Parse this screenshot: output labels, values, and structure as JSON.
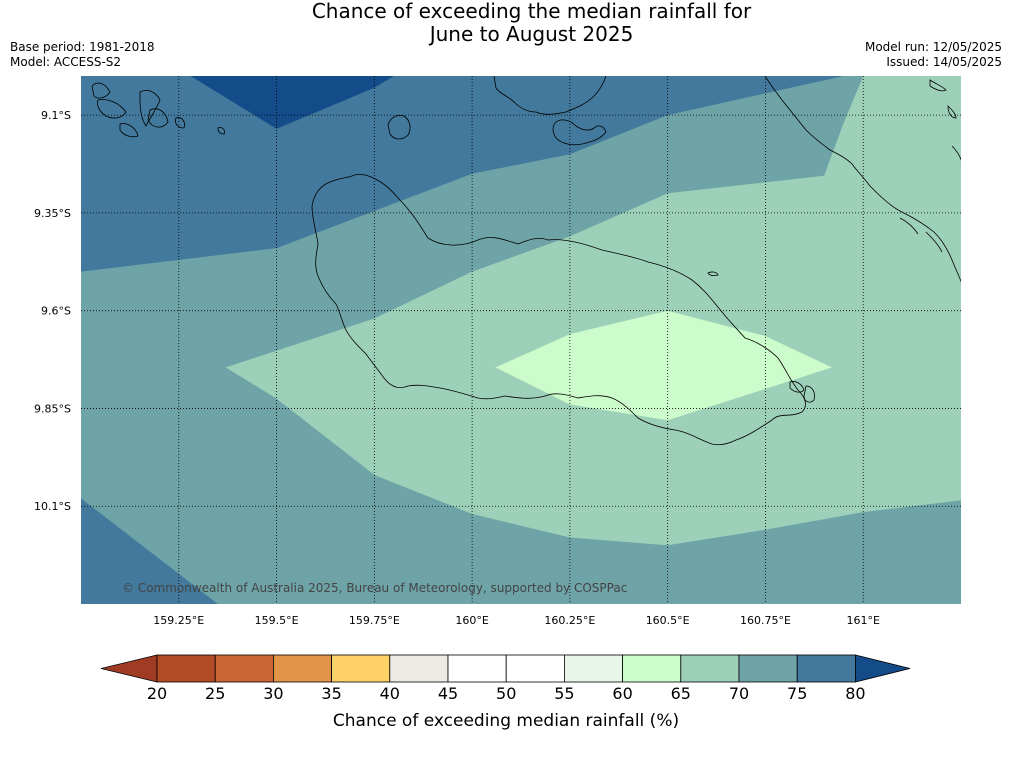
{
  "title": {
    "line1": "Chance of exceeding the median rainfall for",
    "line2": "June to August 2025"
  },
  "meta": {
    "base_period": "Base period: 1981-2018",
    "model": "Model: ACCESS-S2",
    "model_run": "Model run: 12/05/2025",
    "issued": "Issued: 14/05/2025"
  },
  "copyright": "© Commonwealth of Australia 2025, Bureau of Meteorology, supported by COSPPac",
  "map": {
    "lon_range": [
      159.0,
      161.25
    ],
    "lat_range": [
      -10.35,
      -9.0
    ],
    "lon_ticks": [
      {
        "value": 159.25,
        "label": "159.25°E"
      },
      {
        "value": 159.5,
        "label": "159.5°E"
      },
      {
        "value": 159.75,
        "label": "159.75°E"
      },
      {
        "value": 160.0,
        "label": "160°E"
      },
      {
        "value": 160.25,
        "label": "160.25°E"
      },
      {
        "value": 160.5,
        "label": "160.5°E"
      },
      {
        "value": 160.75,
        "label": "160.75°E"
      },
      {
        "value": 161.0,
        "label": "161°E"
      }
    ],
    "lat_ticks": [
      {
        "value": -9.1,
        "label": "9.1°S"
      },
      {
        "value": -9.35,
        "label": "9.35°S"
      },
      {
        "value": -9.6,
        "label": "9.6°S"
      },
      {
        "value": -9.85,
        "label": "9.85°S"
      },
      {
        "value": -10.1,
        "label": "10.1°S"
      }
    ],
    "grid": "dotted",
    "colors": {
      "bin_60_65": "#ccfccb",
      "bin_65_70": "#9dd0b8",
      "bin_70_75": "#6ea3a7",
      "bin_75_80": "#42799c",
      "bin_80_plus": "#134c89",
      "coastline": "#000000"
    },
    "regions": [
      {
        "bin": "bin_75_80",
        "points": [
          [
            159.0,
            -9.0
          ],
          [
            161.25,
            -9.0
          ],
          [
            161.25,
            -10.35
          ],
          [
            159.0,
            -10.35
          ]
        ]
      },
      {
        "bin": "bin_70_75",
        "points": [
          [
            159.0,
            -9.5
          ],
          [
            159.5,
            -9.44
          ],
          [
            160.0,
            -9.25
          ],
          [
            160.25,
            -9.2
          ],
          [
            160.5,
            -9.1
          ],
          [
            160.95,
            -9.0
          ],
          [
            161.25,
            -9.0
          ],
          [
            161.25,
            -10.35
          ],
          [
            159.35,
            -10.35
          ],
          [
            159.0,
            -10.08
          ]
        ]
      },
      {
        "bin": "bin_65_70",
        "points": [
          [
            159.37,
            -9.745
          ],
          [
            159.75,
            -9.62
          ],
          [
            160.0,
            -9.5
          ],
          [
            160.25,
            -9.41
          ],
          [
            160.5,
            -9.3
          ],
          [
            160.9,
            -9.255
          ],
          [
            160.95,
            -9.12
          ],
          [
            161.0,
            -9.0
          ],
          [
            161.25,
            -9.0
          ],
          [
            161.25,
            -10.085
          ],
          [
            161.0,
            -10.115
          ],
          [
            160.75,
            -10.16
          ],
          [
            160.5,
            -10.2
          ],
          [
            160.25,
            -10.18
          ],
          [
            160.0,
            -10.12
          ],
          [
            159.75,
            -10.02
          ],
          [
            159.5,
            -9.825
          ]
        ]
      },
      {
        "bin": "bin_60_65",
        "points": [
          [
            160.06,
            -9.745
          ],
          [
            160.25,
            -9.66
          ],
          [
            160.5,
            -9.6
          ],
          [
            160.75,
            -9.665
          ],
          [
            160.92,
            -9.745
          ],
          [
            160.75,
            -9.8
          ],
          [
            160.5,
            -9.88
          ],
          [
            160.25,
            -9.84
          ]
        ]
      },
      {
        "bin": "bin_80_plus",
        "points": [
          [
            159.28,
            -9.0
          ],
          [
            159.8,
            -9.0
          ],
          [
            159.75,
            -9.03
          ],
          [
            159.5,
            -9.135
          ]
        ]
      }
    ]
  },
  "colorbar": {
    "title": "Chance of exceeding median rainfall (%)",
    "ticks": [
      "20",
      "25",
      "30",
      "35",
      "40",
      "45",
      "50",
      "55",
      "60",
      "65",
      "70",
      "75",
      "80"
    ],
    "under_color": "#a03c23",
    "over_color": "#134c89",
    "colors": [
      "#b44b27",
      "#cd6635",
      "#e29449",
      "#fed068",
      "#edeae4",
      "#ffffff",
      "#ffffff",
      "#e8f5e9",
      "#ccfccb",
      "#9dd0b8",
      "#6ea3a7",
      "#42799c"
    ]
  }
}
